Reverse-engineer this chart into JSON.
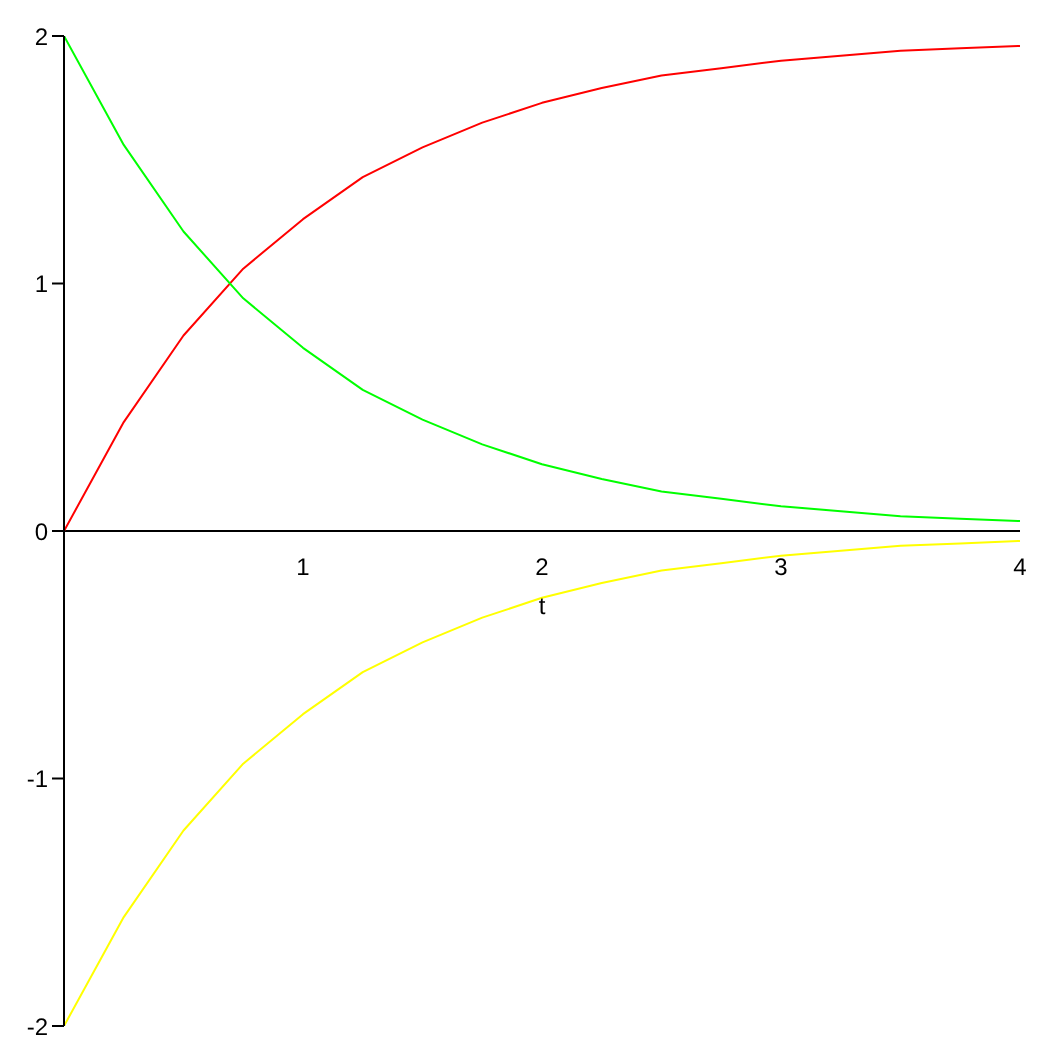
{
  "chart_data": {
    "type": "line",
    "xlabel": "t",
    "x": [
      0,
      0.25,
      0.5,
      0.75,
      1,
      1.25,
      1.5,
      1.75,
      2,
      2.25,
      2.5,
      2.75,
      3,
      3.25,
      3.5,
      3.75,
      4
    ],
    "series": [
      {
        "color": "#ff0000",
        "values": [
          0,
          0.44,
          0.79,
          1.06,
          1.26,
          1.43,
          1.55,
          1.65,
          1.73,
          1.79,
          1.84,
          1.87,
          1.9,
          1.92,
          1.94,
          1.95,
          1.96
        ]
      },
      {
        "color": "#00ff00",
        "values": [
          2,
          1.56,
          1.21,
          0.94,
          0.74,
          0.57,
          0.45,
          0.35,
          0.27,
          0.21,
          0.16,
          0.13,
          0.1,
          0.08,
          0.06,
          0.05,
          0.04
        ]
      },
      {
        "color": "#ffff00",
        "values": [
          -2,
          -1.56,
          -1.21,
          -0.94,
          -0.74,
          -0.57,
          -0.45,
          -0.35,
          -0.27,
          -0.21,
          -0.16,
          -0.13,
          -0.1,
          -0.08,
          -0.06,
          -0.05,
          -0.04
        ]
      }
    ],
    "xlim": [
      0,
      4
    ],
    "xticks": [
      1,
      2,
      3,
      4
    ],
    "ylim": [
      -2,
      2
    ],
    "yticks": [
      -2,
      -1,
      0,
      1,
      2
    ]
  }
}
